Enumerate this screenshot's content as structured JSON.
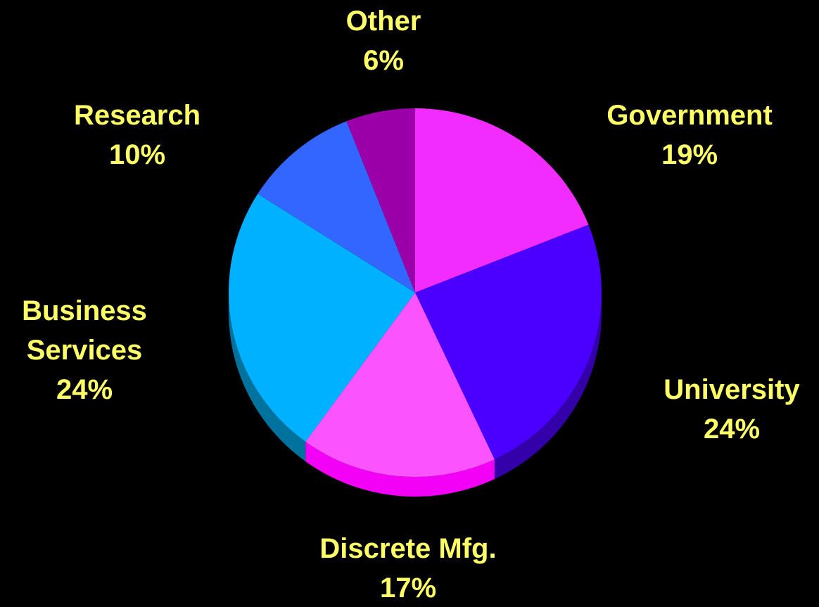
{
  "chart_data": {
    "type": "pie",
    "title": "",
    "slices": [
      {
        "label": "Government",
        "value": 19,
        "value_label": "19%",
        "color": "#f22cff",
        "side_color": "#b800c4"
      },
      {
        "label": "University",
        "value": 24,
        "value_label": "24%",
        "color": "#4b00ff",
        "side_color": "#3300aa"
      },
      {
        "label": "Discrete Mfg.",
        "value": 17,
        "value_label": "17%",
        "color": "#fb54ff",
        "side_color": "#f300f6"
      },
      {
        "label": "Business Services",
        "value": 24,
        "value_label": "24%",
        "color": "#00b1ff",
        "side_color": "#00729e"
      },
      {
        "label": "Research",
        "value": 10,
        "value_label": "10%",
        "color": "#3366ff",
        "side_color": "#2244aa"
      },
      {
        "label": "Other",
        "value": 6,
        "value_label": "6%",
        "color": "#9b00a8",
        "side_color": "#6b0075"
      }
    ],
    "legend": "none",
    "labels_placement": "outside"
  },
  "labels": {
    "government": {
      "name": "Government",
      "pct": "19%"
    },
    "university": {
      "name": "University",
      "pct": "24%"
    },
    "discrete": {
      "name": "Discrete Mfg.",
      "pct": "17%"
    },
    "business": {
      "name_line1": "Business",
      "name_line2": "Services",
      "pct": "24%"
    },
    "research": {
      "name": "Research",
      "pct": "10%"
    },
    "other": {
      "name": "Other",
      "pct": "6%"
    }
  },
  "colors": {
    "background": "#000000",
    "label_text": "#ffff66"
  }
}
